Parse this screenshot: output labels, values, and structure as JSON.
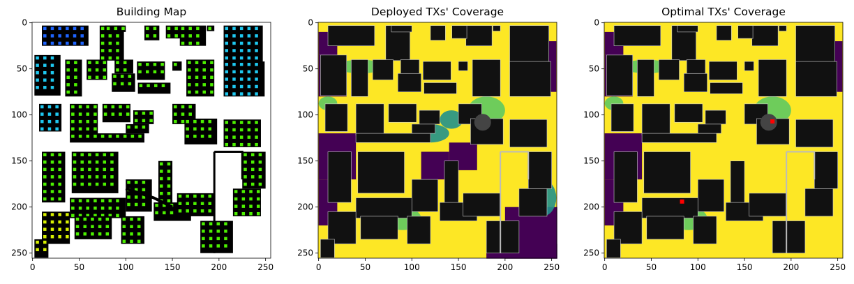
{
  "chart_data": [
    {
      "type": "heatmap",
      "title": "Building Map",
      "xlim": [
        0,
        255
      ],
      "ylim": [
        255,
        0
      ],
      "x_ticks": [
        0,
        50,
        100,
        150,
        200,
        250
      ],
      "y_ticks": [
        0,
        50,
        100,
        150,
        200,
        250
      ],
      "colors": {
        "building": "#000000",
        "free": "#ffffff",
        "candidate_green": "#4cf000",
        "candidate_cyan": "#1ec8f0",
        "candidate_blue": "#1e64ff",
        "candidate_yellow": "#d8f000"
      }
    },
    {
      "type": "heatmap",
      "title": "Deployed TXs' Coverage",
      "xlim": [
        0,
        255
      ],
      "ylim": [
        255,
        0
      ],
      "x_ticks": [
        0,
        50,
        100,
        150,
        200,
        250
      ],
      "y_ticks": [
        0,
        50,
        100,
        150,
        200,
        250
      ],
      "colors": {
        "high": "#fde725",
        "mid_high": "#5ec962",
        "mid": "#21918c",
        "low": "#440154",
        "building": "#111111"
      }
    },
    {
      "type": "heatmap",
      "title": "Optimal TXs' Coverage",
      "xlim": [
        0,
        255
      ],
      "ylim": [
        255,
        0
      ],
      "x_ticks": [
        0,
        50,
        100,
        150,
        200,
        250
      ],
      "y_ticks": [
        0,
        50,
        100,
        150,
        200,
        250
      ],
      "transmitters": [
        {
          "x": 180,
          "y": 107
        },
        {
          "x": 83,
          "y": 194
        }
      ],
      "colors": {
        "high": "#fde725",
        "mid_high": "#5ec962",
        "mid": "#21918c",
        "low": "#440154",
        "building": "#111111",
        "tx": "#ff0000"
      }
    }
  ]
}
